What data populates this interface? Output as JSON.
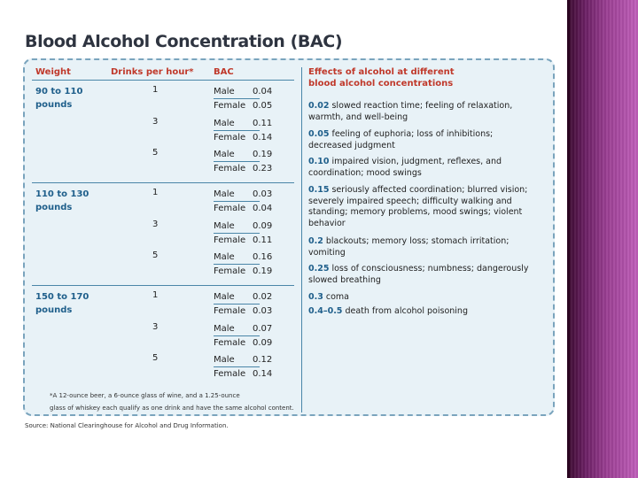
{
  "title": "Blood Alcohol Concentration (BAC)",
  "headers": {
    "weight": "Weight",
    "drinks": "Drinks per hour*",
    "bac": "BAC",
    "effects_line1": "Effects of alcohol at different",
    "effects_line2": "blood alcohol concentrations"
  },
  "groups": [
    {
      "weight_line1": "90 to 110",
      "weight_line2": "pounds",
      "rows": [
        {
          "drinks": "1",
          "male_label": "Male",
          "male": "0.04",
          "female_label": "Female",
          "female": "0.05"
        },
        {
          "drinks": "3",
          "male_label": "Male",
          "male": "0.11",
          "female_label": "Female",
          "female": "0.14"
        },
        {
          "drinks": "5",
          "male_label": "Male",
          "male": "0.19",
          "female_label": "Female",
          "female": "0.23"
        }
      ]
    },
    {
      "weight_line1": "110 to 130",
      "weight_line2": "pounds",
      "rows": [
        {
          "drinks": "1",
          "male_label": "Male",
          "male": "0.03",
          "female_label": "Female",
          "female": "0.04"
        },
        {
          "drinks": "3",
          "male_label": "Male",
          "male": "0.09",
          "female_label": "Female",
          "female": "0.11"
        },
        {
          "drinks": "5",
          "male_label": "Male",
          "male": "0.16",
          "female_label": "Female",
          "female": "0.19"
        }
      ]
    },
    {
      "weight_line1": "150 to 170",
      "weight_line2": "pounds",
      "rows": [
        {
          "drinks": "1",
          "male_label": "Male",
          "male": "0.02",
          "female_label": "Female",
          "female": "0.03"
        },
        {
          "drinks": "3",
          "male_label": "Male",
          "male": "0.07",
          "female_label": "Female",
          "female": "0.09"
        },
        {
          "drinks": "5",
          "male_label": "Male",
          "male": "0.12",
          "female_label": "Female",
          "female": "0.14"
        }
      ]
    }
  ],
  "effects": [
    {
      "level": "0.02",
      "text": "slowed reaction time; feeling of relaxation, warmth, and well-being"
    },
    {
      "level": "0.05",
      "text": "feeling of euphoria; loss of inhibitions; decreased judgment"
    },
    {
      "level": "0.10",
      "text": "impaired vision, judgment, reflexes, and coordination; mood swings"
    },
    {
      "level": "0.15",
      "text": "seriously affected coordination; blurred vision; severely impaired speech; difficulty walking and standing; memory problems, mood swings; violent behavior"
    },
    {
      "level": "0.2",
      "text": "blackouts; memory loss; stomach irritation; vomiting"
    },
    {
      "level": "0.25",
      "text": "loss of consciousness; numbness; dangerously slowed breathing"
    },
    {
      "level": "0.3",
      "text": "coma"
    },
    {
      "level": "0.4–0.5",
      "text": "death from alcohol poisoning"
    }
  ],
  "footnote_line1": "*A 12-ounce beer, a 6-ounce glass of wine, and a 1.25-ounce",
  "footnote_line2": "glass of whiskey each qualify as one drink and have the same alcohol content.",
  "source": "Source: National Clearinghouse for Alcohol and Drug Information."
}
